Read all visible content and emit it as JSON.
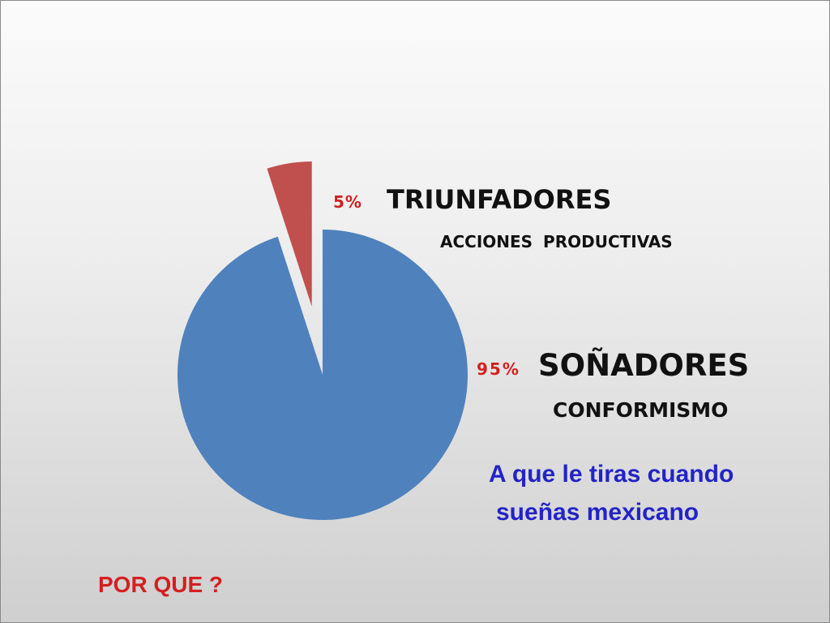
{
  "chart_data": {
    "type": "pie",
    "slices": [
      {
        "percent_label": "5%",
        "name": "TRIUNFADORES",
        "description": "ACCIONES PRODUCTIVAS",
        "value": 5,
        "color": "#c0504d",
        "exploded": true
      },
      {
        "percent_label": "95%",
        "name": "SOÑADORES",
        "description": "CONFORMISMO",
        "value": 95,
        "color": "#4f81bd",
        "exploded": false
      }
    ],
    "percent_label_color": "#d42020"
  },
  "annotations": {
    "question_line1": "A que le tiras cuando",
    "question_line2": "sueñas mexicano",
    "question_color": "#2323c8",
    "footer": "POR QUE ?",
    "footer_color": "#d42020"
  }
}
